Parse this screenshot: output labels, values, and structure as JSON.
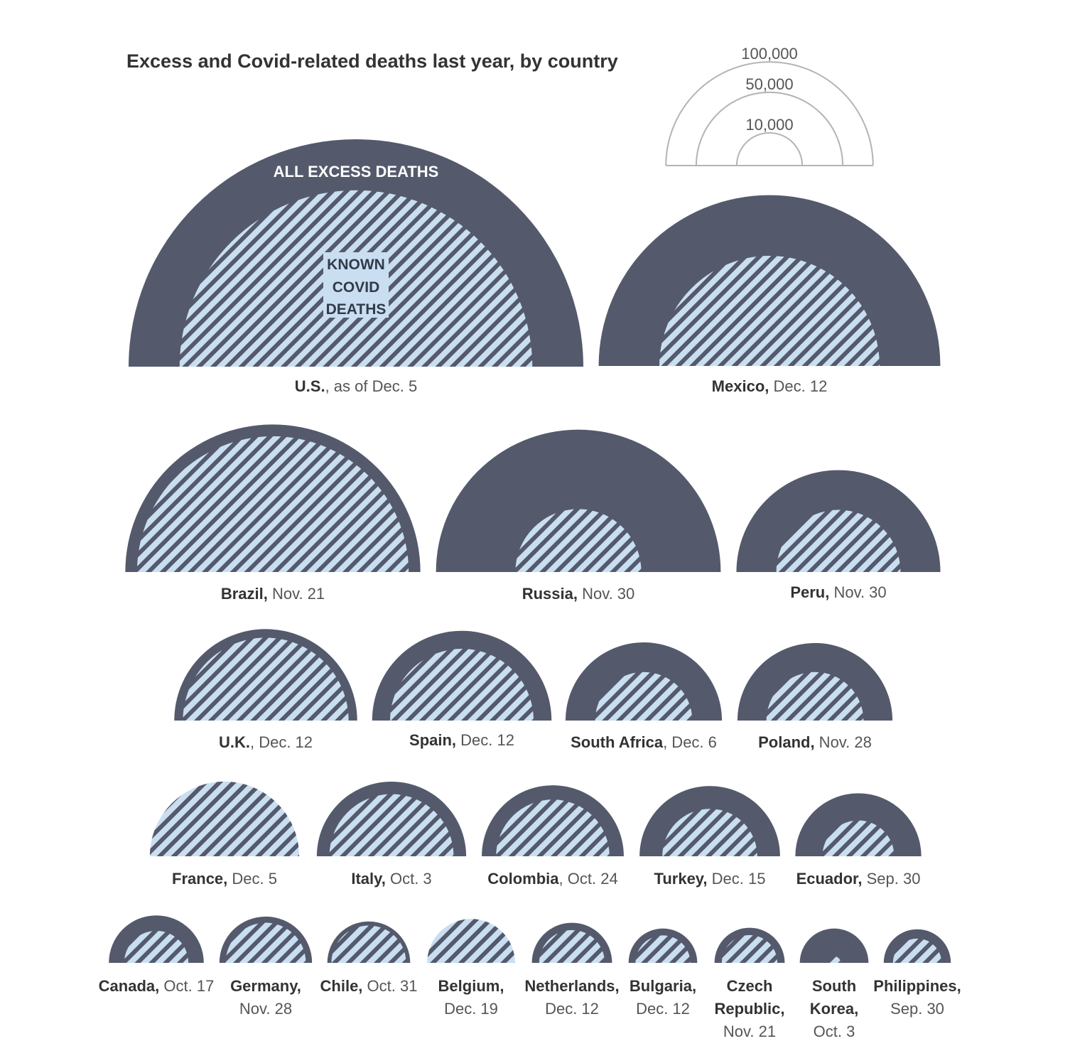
{
  "chart_data": {
    "type": "nested-semicircle",
    "title": "Excess and Covid-related deaths last year, by country",
    "legend": {
      "scale_values": [
        100000,
        50000,
        10000
      ],
      "scale_labels": [
        "100,000",
        "50,000",
        "10,000"
      ]
    },
    "annotations": {
      "excess": "ALL EXCESS DEATHS",
      "covid": [
        "KNOWN",
        "COVID",
        "DEATHS"
      ]
    },
    "colors": {
      "excess": "#545a6c",
      "covid_fill": "#c9dff1",
      "covid_stripe": "#545a6c",
      "key_stroke": "#b4b4b4"
    },
    "series": [
      {
        "name": "All excess deaths"
      },
      {
        "name": "Known Covid deaths"
      }
    ],
    "countries": [
      {
        "name": "U.S.",
        "date": ", as of Dec. 5",
        "excess": 482000,
        "covid": 290000
      },
      {
        "name": "Mexico,",
        "date": " Dec. 12",
        "excess": 272000,
        "covid": 113000
      },
      {
        "name": "Brazil,",
        "date": " Nov. 21",
        "excess": 203000,
        "covid": 172000
      },
      {
        "name": "Russia,",
        "date": " Nov. 30",
        "excess": 189000,
        "covid": 37000
      },
      {
        "name": "Peru,",
        "date": " Nov. 30",
        "excess": 97000,
        "covid": 36000
      },
      {
        "name": "U.K.",
        "date": ", Dec. 12",
        "excess": 78000,
        "covid": 64000
      },
      {
        "name": "Spain,",
        "date": " Dec. 12",
        "excess": 75000,
        "covid": 48000
      },
      {
        "name": "South Africa",
        "date": ", Dec. 6",
        "excess": 57000,
        "covid": 22000
      },
      {
        "name": "Poland,",
        "date": " Nov. 28",
        "excess": 56000,
        "covid": 22000
      },
      {
        "name": "France,",
        "date": " Dec. 5",
        "excess": 49000,
        "covid": 52000
      },
      {
        "name": "Italy,",
        "date": " Oct. 3",
        "excess": 52000,
        "covid": 36000
      },
      {
        "name": "Colombia",
        "date": ", Oct. 24",
        "excess": 47000,
        "covid": 30000
      },
      {
        "name": "Turkey,",
        "date": " Dec. 15",
        "excess": 46000,
        "covid": 21000
      },
      {
        "name": "Ecuador,",
        "date": " Sep. 30",
        "excess": 37000,
        "covid": 12000
      },
      {
        "name": "Canada,",
        "date": " Oct. 17",
        "excess": 21000,
        "covid": 9600
      },
      {
        "name": "Germany,",
        "date": "Nov. 28",
        "excess": 20000,
        "covid": 15000
      },
      {
        "name": "Chile,",
        "date": " Oct. 31",
        "excess": 16000,
        "covid": 13000
      },
      {
        "name": "Belgium,",
        "date": "Dec. 19",
        "excess": 15000,
        "covid": 18000
      },
      {
        "name": "Netherlands,",
        "date": "Dec. 12",
        "excess": 15000,
        "covid": 10000
      },
      {
        "name": "Bulgaria,",
        "date": "Dec. 12",
        "excess": 11000,
        "covid": 7000
      },
      {
        "name": "Czech Republic,",
        "date": "Nov. 21",
        "excess": 11500,
        "covid": 7200
      },
      {
        "name": "South Korea,",
        "date": "Oct. 3",
        "excess": 11000,
        "covid": 400
      },
      {
        "name": "Philippines,",
        "date": "Sep. 30",
        "excess": 10500,
        "covid": 5500
      }
    ]
  }
}
